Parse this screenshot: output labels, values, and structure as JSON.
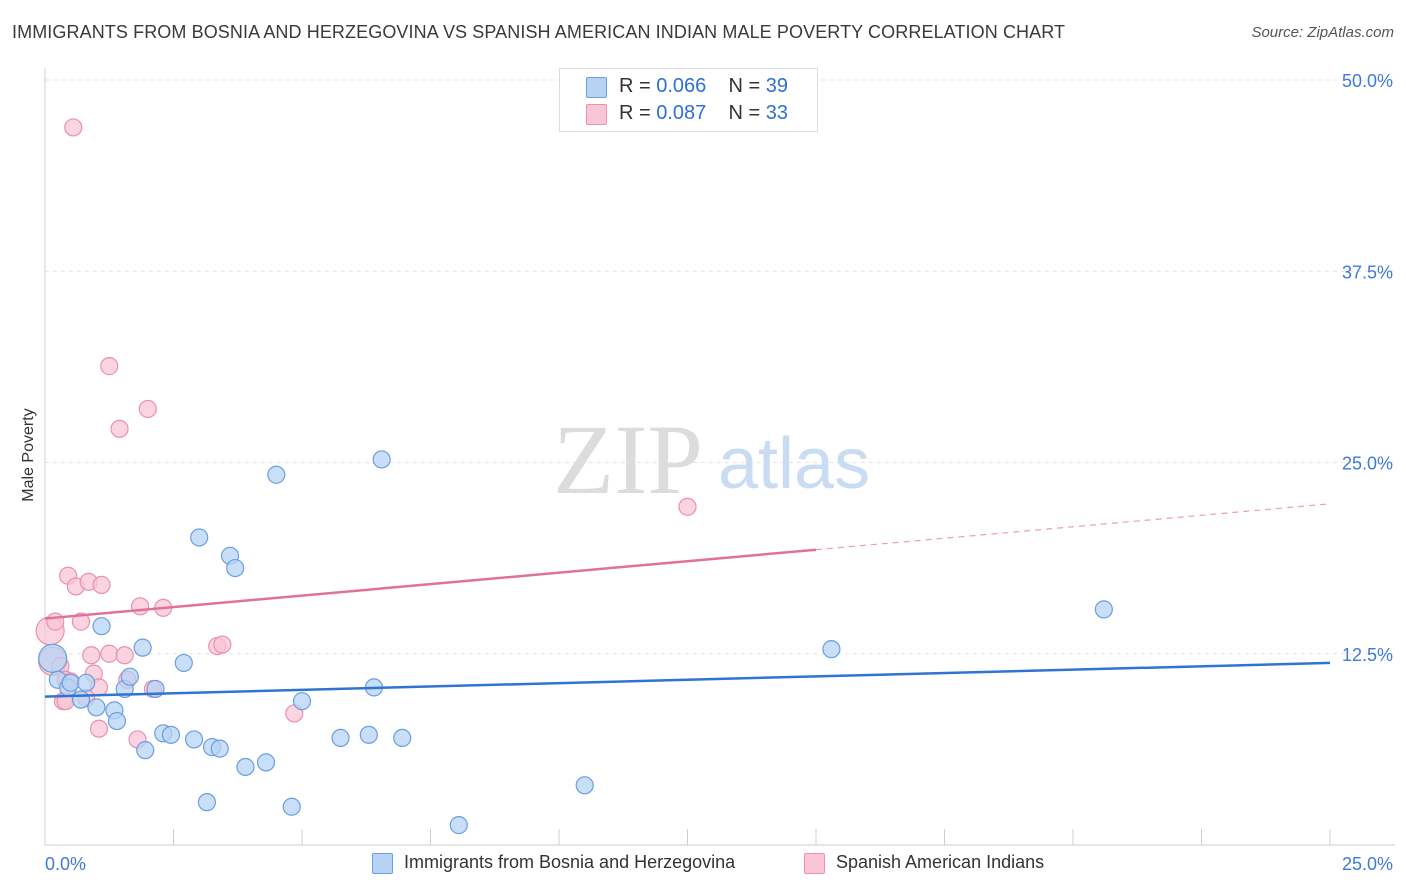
{
  "title": "IMMIGRANTS FROM BOSNIA AND HERZEGOVINA VS SPANISH AMERICAN INDIAN MALE POVERTY CORRELATION CHART",
  "source": "Source: ZipAtlas.com",
  "watermark": {
    "zip": "ZIP",
    "atlas": "atlas"
  },
  "colors": {
    "blue_fill": "#b7d3f4",
    "blue_stroke": "#6a9fe0",
    "blue_line": "#2f74d0",
    "pink_fill": "#f8c6d6",
    "pink_stroke": "#ec8fb0",
    "pink_line": "#e2719a",
    "tick_text": "#3f7ad6",
    "grid": "#e4e4e4"
  },
  "legend": [
    {
      "r_label": "R =",
      "r_value": "0.066",
      "n_label": "N =",
      "n_value": "39",
      "color": "#b7d3f4",
      "border": "#6a9fe0"
    },
    {
      "r_label": "R =",
      "r_value": "0.087",
      "n_label": "N =",
      "n_value": "33",
      "color": "#f8c6d6",
      "border": "#ec8fb0"
    }
  ],
  "bottom_legend": [
    {
      "label": "Immigrants from Bosnia and Herzegovina",
      "color": "#b7d3f4",
      "border": "#6a9fe0"
    },
    {
      "label": "Spanish American Indians",
      "color": "#f8c6d6",
      "border": "#ec8fb0"
    }
  ],
  "chart_data": {
    "type": "scatter",
    "title": "IMMIGRANTS FROM BOSNIA AND HERZEGOVINA VS SPANISH AMERICAN INDIAN MALE POVERTY CORRELATION CHART",
    "xlabel": "",
    "ylabel": "Male Poverty",
    "xlim": [
      0,
      25
    ],
    "ylim": [
      0,
      50
    ],
    "x_tick_labels": [
      "0.0%",
      "25.0%"
    ],
    "y_ticks": [
      12.5,
      25.0,
      37.5,
      50.0
    ],
    "y_tick_labels": [
      "12.5%",
      "25.0%",
      "37.5%",
      "50.0%"
    ],
    "grid": true,
    "series": [
      {
        "name": "Immigrants from Bosnia and Herzegovina",
        "R": 0.066,
        "N": 39,
        "trend": {
          "x": [
            0,
            25
          ],
          "y": [
            9.7,
            11.9
          ],
          "dashed_from": null
        },
        "points": [
          {
            "x": 0.15,
            "y": 12.2,
            "large": true
          },
          {
            "x": 0.25,
            "y": 10.8
          },
          {
            "x": 0.45,
            "y": 10.3
          },
          {
            "x": 0.5,
            "y": 10.6
          },
          {
            "x": 0.7,
            "y": 9.5
          },
          {
            "x": 0.8,
            "y": 10.6
          },
          {
            "x": 1.0,
            "y": 9.0
          },
          {
            "x": 1.1,
            "y": 14.3
          },
          {
            "x": 1.35,
            "y": 8.8
          },
          {
            "x": 1.4,
            "y": 8.1
          },
          {
            "x": 1.55,
            "y": 10.2
          },
          {
            "x": 1.65,
            "y": 11.0
          },
          {
            "x": 1.9,
            "y": 12.9
          },
          {
            "x": 1.95,
            "y": 6.2
          },
          {
            "x": 2.15,
            "y": 10.2
          },
          {
            "x": 2.3,
            "y": 7.3
          },
          {
            "x": 2.45,
            "y": 7.2
          },
          {
            "x": 2.7,
            "y": 11.9
          },
          {
            "x": 2.9,
            "y": 6.9
          },
          {
            "x": 3.0,
            "y": 20.1
          },
          {
            "x": 3.15,
            "y": 2.8
          },
          {
            "x": 3.25,
            "y": 6.4
          },
          {
            "x": 3.4,
            "y": 6.3
          },
          {
            "x": 3.6,
            "y": 18.9
          },
          {
            "x": 3.7,
            "y": 18.1
          },
          {
            "x": 3.9,
            "y": 5.1
          },
          {
            "x": 4.3,
            "y": 5.4
          },
          {
            "x": 4.5,
            "y": 24.2
          },
          {
            "x": 4.8,
            "y": 2.5
          },
          {
            "x": 5.0,
            "y": 9.4
          },
          {
            "x": 5.75,
            "y": 7.0
          },
          {
            "x": 6.3,
            "y": 7.2
          },
          {
            "x": 6.4,
            "y": 10.3
          },
          {
            "x": 6.55,
            "y": 25.2
          },
          {
            "x": 6.95,
            "y": 7.0
          },
          {
            "x": 8.05,
            "y": 1.3
          },
          {
            "x": 10.5,
            "y": 3.9
          },
          {
            "x": 15.3,
            "y": 12.8
          },
          {
            "x": 20.6,
            "y": 15.4
          }
        ]
      },
      {
        "name": "Spanish American Indians",
        "R": 0.087,
        "N": 33,
        "trend": {
          "x": [
            0,
            25
          ],
          "y": [
            14.8,
            22.3
          ],
          "dashed_from": 15.0
        },
        "points": [
          {
            "x": 0.1,
            "y": 14.0,
            "large": true
          },
          {
            "x": 0.15,
            "y": 12.0,
            "large": true
          },
          {
            "x": 0.2,
            "y": 14.6
          },
          {
            "x": 0.3,
            "y": 11.7
          },
          {
            "x": 0.35,
            "y": 9.4
          },
          {
            "x": 0.4,
            "y": 10.8
          },
          {
            "x": 0.4,
            "y": 9.4
          },
          {
            "x": 0.45,
            "y": 17.6
          },
          {
            "x": 0.5,
            "y": 10.7
          },
          {
            "x": 0.55,
            "y": 46.9
          },
          {
            "x": 0.6,
            "y": 16.9
          },
          {
            "x": 0.7,
            "y": 14.6
          },
          {
            "x": 0.8,
            "y": 9.6
          },
          {
            "x": 0.85,
            "y": 17.2
          },
          {
            "x": 0.9,
            "y": 12.4
          },
          {
            "x": 0.95,
            "y": 11.2
          },
          {
            "x": 1.05,
            "y": 10.3
          },
          {
            "x": 1.05,
            "y": 7.6
          },
          {
            "x": 1.1,
            "y": 17.0
          },
          {
            "x": 1.25,
            "y": 12.5
          },
          {
            "x": 1.25,
            "y": 31.3
          },
          {
            "x": 1.45,
            "y": 27.2
          },
          {
            "x": 1.55,
            "y": 12.4
          },
          {
            "x": 1.6,
            "y": 10.8
          },
          {
            "x": 1.8,
            "y": 6.9
          },
          {
            "x": 1.85,
            "y": 15.6
          },
          {
            "x": 2.0,
            "y": 28.5
          },
          {
            "x": 2.1,
            "y": 10.2
          },
          {
            "x": 2.3,
            "y": 15.5
          },
          {
            "x": 3.35,
            "y": 13.0
          },
          {
            "x": 3.45,
            "y": 13.1
          },
          {
            "x": 4.85,
            "y": 8.6
          },
          {
            "x": 12.5,
            "y": 22.1
          }
        ]
      }
    ]
  }
}
